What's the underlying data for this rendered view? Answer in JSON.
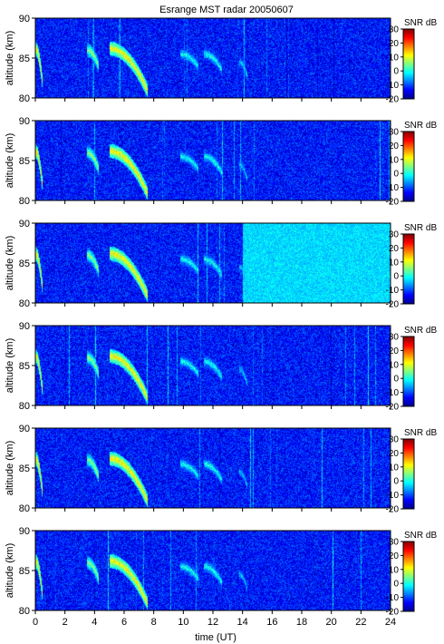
{
  "figure": {
    "title": "Esrange MST radar 20050607"
  },
  "chart_data": {
    "type": "heatmap",
    "title": "Esrange MST radar 20050607",
    "xlabel": "time (UT)",
    "ylabel": "altitude (km)",
    "xlim": [
      0,
      24
    ],
    "ylim": [
      80,
      90
    ],
    "x_ticks": [
      "0",
      "2",
      "4",
      "6",
      "8",
      "10",
      "12",
      "14",
      "16",
      "18",
      "20",
      "22",
      "24"
    ],
    "y_ticks": [
      "80",
      "85",
      "90"
    ],
    "colorbar": {
      "label": "SNR dB",
      "range": [
        -20,
        30
      ],
      "ticks": [
        "-20",
        "-10",
        "0",
        "10",
        "20",
        "30"
      ],
      "colormap": [
        "#00008f",
        "#0000ff",
        "#0080ff",
        "#00ffff",
        "#80ff80",
        "#ffff00",
        "#ff8000",
        "#ff0000",
        "#800000"
      ]
    },
    "panel_count": 6,
    "noise_level_db": -13,
    "echo_features": [
      {
        "t_start": 0.0,
        "t_end": 0.5,
        "alt_top": 86.2,
        "alt_bottom": 81.6,
        "peak_db": 12
      },
      {
        "t_start": 3.5,
        "t_end": 4.3,
        "alt_top": 86.0,
        "alt_bottom": 83.8,
        "peak_db": 6
      },
      {
        "t_start": 5.0,
        "t_end": 7.6,
        "alt_top": 86.2,
        "alt_bottom": 80.8,
        "peak_db": 12
      },
      {
        "t_start": 9.8,
        "t_end": 11.0,
        "alt_top": 85.5,
        "alt_bottom": 84.0,
        "peak_db": 0
      },
      {
        "t_start": 11.4,
        "t_end": 12.6,
        "alt_top": 85.5,
        "alt_bottom": 83.5,
        "peak_db": 0
      },
      {
        "t_start": 13.8,
        "t_end": 14.3,
        "alt_top": 84.5,
        "alt_bottom": 82.8,
        "peak_db": -3
      }
    ],
    "panel3_elevated_noise": {
      "t_start": 14.0,
      "t_end": 24.0,
      "level_db": -3
    }
  }
}
